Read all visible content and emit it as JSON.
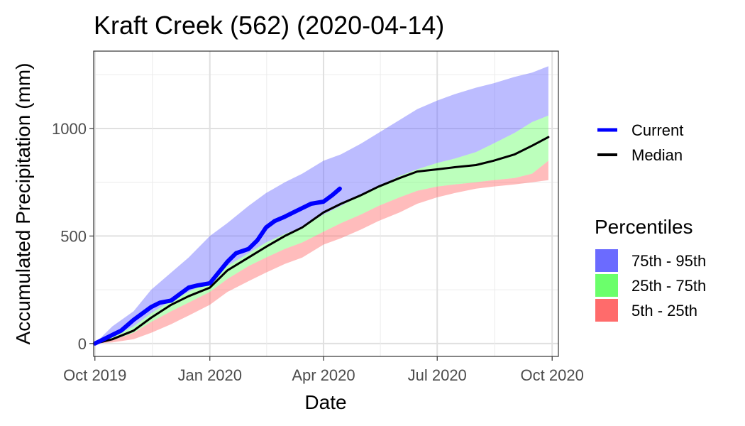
{
  "chart_data": {
    "type": "area",
    "title": "Kraft Creek (562) (2020-04-14)",
    "xlabel": "Date",
    "ylabel": "Accumulated Precipitation (mm)",
    "xlim": [
      "2019-09-30",
      "2020-10-06"
    ],
    "ylim": [
      -60,
      1360
    ],
    "x_ticks": [
      {
        "date": "2019-10-01",
        "label": "Oct 2019"
      },
      {
        "date": "2020-01-01",
        "label": "Jan 2020"
      },
      {
        "date": "2020-04-01",
        "label": "Apr 2020"
      },
      {
        "date": "2020-07-01",
        "label": "Jul 2020"
      },
      {
        "date": "2020-10-01",
        "label": "Oct 2020"
      }
    ],
    "y_ticks": [
      0,
      500,
      1000
    ],
    "grid": true,
    "bands": [
      {
        "name": "75th - 95th",
        "color": "#6b6bff",
        "x": [
          "2019-10-01",
          "2019-10-15",
          "2019-11-01",
          "2019-11-15",
          "2019-12-01",
          "2019-12-15",
          "2020-01-01",
          "2020-01-15",
          "2020-02-01",
          "2020-02-15",
          "2020-03-01",
          "2020-03-15",
          "2020-04-01",
          "2020-04-15",
          "2020-05-01",
          "2020-05-15",
          "2020-06-01",
          "2020-06-15",
          "2020-07-01",
          "2020-07-15",
          "2020-08-01",
          "2020-08-15",
          "2020-09-01",
          "2020-09-15",
          "2020-09-28"
        ],
        "lower": [
          0,
          30,
          80,
          140,
          200,
          240,
          290,
          360,
          420,
          470,
          510,
          540,
          600,
          640,
          690,
          730,
          780,
          810,
          840,
          860,
          890,
          930,
          980,
          1030,
          1060
        ],
        "upper": [
          0,
          80,
          150,
          250,
          330,
          400,
          500,
          560,
          640,
          700,
          750,
          790,
          850,
          880,
          930,
          980,
          1040,
          1090,
          1130,
          1160,
          1190,
          1210,
          1240,
          1260,
          1290
        ]
      },
      {
        "name": "25th - 75th",
        "color": "#6bff6b",
        "x": [
          "2019-10-01",
          "2019-10-15",
          "2019-11-01",
          "2019-11-15",
          "2019-12-01",
          "2019-12-15",
          "2020-01-01",
          "2020-01-15",
          "2020-02-01",
          "2020-02-15",
          "2020-03-01",
          "2020-03-15",
          "2020-04-01",
          "2020-04-15",
          "2020-05-01",
          "2020-05-15",
          "2020-06-01",
          "2020-06-15",
          "2020-07-01",
          "2020-07-15",
          "2020-08-01",
          "2020-08-15",
          "2020-09-01",
          "2020-09-15",
          "2020-09-28"
        ],
        "lower": [
          0,
          15,
          50,
          100,
          150,
          190,
          240,
          300,
          360,
          400,
          440,
          470,
          520,
          560,
          600,
          640,
          680,
          710,
          730,
          740,
          750,
          760,
          770,
          790,
          850
        ],
        "upper": [
          0,
          30,
          80,
          140,
          200,
          240,
          290,
          360,
          420,
          470,
          510,
          540,
          600,
          640,
          690,
          730,
          780,
          810,
          840,
          860,
          890,
          930,
          980,
          1030,
          1060
        ]
      },
      {
        "name": "5th - 25th",
        "color": "#ff6b6b",
        "x": [
          "2019-10-01",
          "2019-10-15",
          "2019-11-01",
          "2019-11-15",
          "2019-12-01",
          "2019-12-15",
          "2020-01-01",
          "2020-01-15",
          "2020-02-01",
          "2020-02-15",
          "2020-03-01",
          "2020-03-15",
          "2020-04-01",
          "2020-04-15",
          "2020-05-01",
          "2020-05-15",
          "2020-06-01",
          "2020-06-15",
          "2020-07-01",
          "2020-07-15",
          "2020-08-01",
          "2020-08-15",
          "2020-09-01",
          "2020-09-15",
          "2020-09-28"
        ],
        "lower": [
          0,
          5,
          20,
          50,
          90,
          130,
          180,
          240,
          290,
          330,
          370,
          400,
          460,
          490,
          530,
          570,
          610,
          650,
          680,
          700,
          720,
          730,
          740,
          750,
          760
        ],
        "upper": [
          0,
          15,
          50,
          100,
          150,
          190,
          240,
          300,
          360,
          400,
          440,
          470,
          520,
          560,
          600,
          640,
          680,
          710,
          730,
          740,
          750,
          760,
          770,
          790,
          850
        ]
      }
    ],
    "series": [
      {
        "name": "Current",
        "color": "#0000ff",
        "x": [
          "2019-10-01",
          "2019-10-08",
          "2019-10-15",
          "2019-10-22",
          "2019-11-01",
          "2019-11-08",
          "2019-11-15",
          "2019-11-22",
          "2019-12-01",
          "2019-12-08",
          "2019-12-15",
          "2019-12-22",
          "2020-01-01",
          "2020-01-08",
          "2020-01-15",
          "2020-01-22",
          "2020-02-01",
          "2020-02-08",
          "2020-02-15",
          "2020-02-22",
          "2020-03-01",
          "2020-03-08",
          "2020-03-15",
          "2020-03-22",
          "2020-04-01",
          "2020-04-08",
          "2020-04-14"
        ],
        "y": [
          0,
          20,
          40,
          60,
          110,
          140,
          170,
          190,
          200,
          230,
          260,
          270,
          280,
          330,
          380,
          420,
          440,
          480,
          540,
          570,
          590,
          610,
          630,
          650,
          660,
          690,
          720
        ]
      },
      {
        "name": "Median",
        "color": "#000000",
        "x": [
          "2019-10-01",
          "2019-10-15",
          "2019-11-01",
          "2019-11-15",
          "2019-12-01",
          "2019-12-15",
          "2020-01-01",
          "2020-01-15",
          "2020-02-01",
          "2020-02-15",
          "2020-03-01",
          "2020-03-15",
          "2020-04-01",
          "2020-04-15",
          "2020-05-01",
          "2020-05-15",
          "2020-06-01",
          "2020-06-15",
          "2020-07-01",
          "2020-07-15",
          "2020-08-01",
          "2020-08-15",
          "2020-09-01",
          "2020-09-15",
          "2020-09-28"
        ],
        "y": [
          0,
          20,
          60,
          120,
          180,
          220,
          260,
          340,
          400,
          450,
          500,
          540,
          610,
          650,
          690,
          730,
          770,
          800,
          810,
          820,
          830,
          850,
          880,
          920,
          960
        ]
      }
    ],
    "legend": {
      "position": "right",
      "lines_title": "",
      "bands_title": "Percentiles"
    }
  }
}
